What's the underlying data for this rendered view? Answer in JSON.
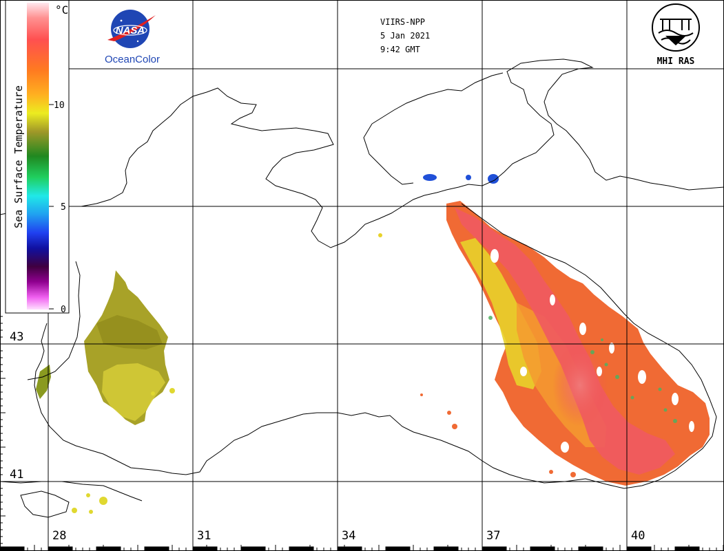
{
  "header": {
    "sensor": "VIIRS-NPP",
    "date": "5 Jan 2021",
    "time": "9:42 GMT"
  },
  "logos": {
    "nasa_text": "NASA",
    "oceancolor_text": "OceanColor",
    "mhi_text": "MHI RAS"
  },
  "colorbar": {
    "title": "Sea Surface Temperature",
    "unit": "°C",
    "ticks": [
      "10",
      "5",
      "0"
    ]
  },
  "latitude_labels": [
    "43",
    "41"
  ],
  "longitude_labels": [
    "28",
    "31",
    "34",
    "37",
    "40"
  ],
  "colors": {
    "warm": "#f06030",
    "hot": "#f05a5a",
    "yellow": "#e8d820",
    "olive": "#a8a020",
    "grid": "#000000"
  }
}
